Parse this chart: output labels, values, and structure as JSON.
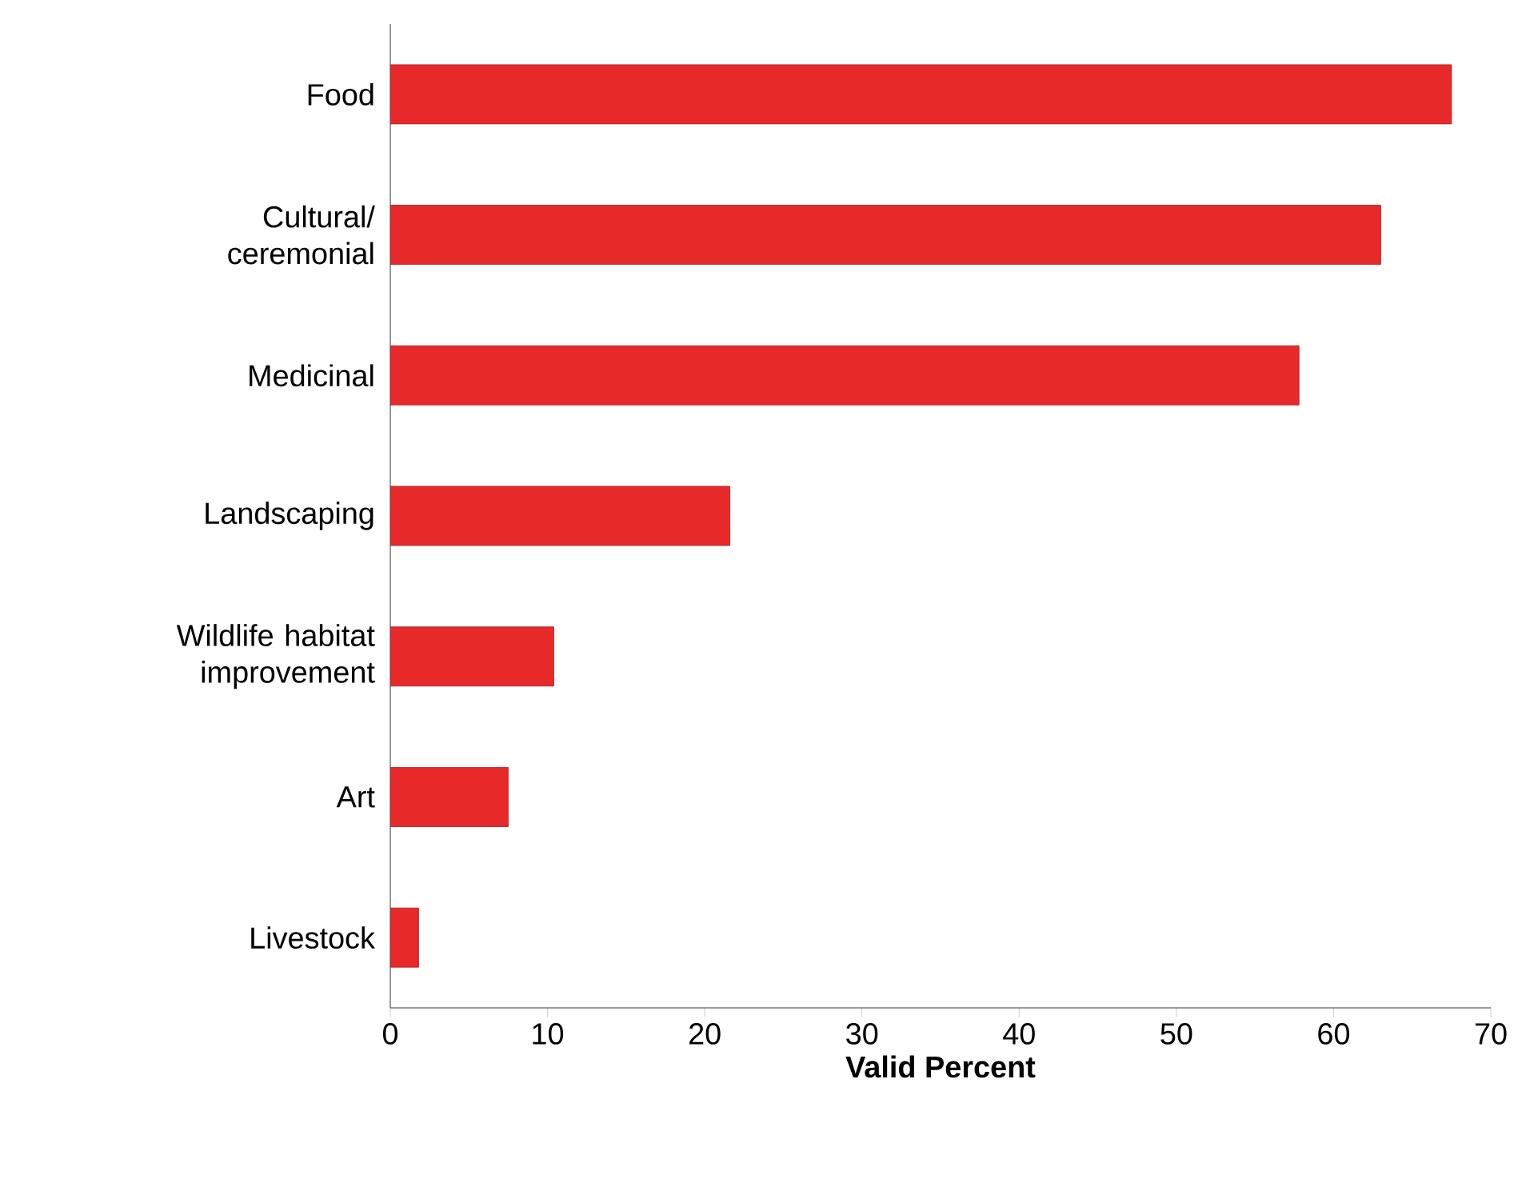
{
  "chart_data": {
    "type": "bar",
    "orientation": "horizontal",
    "xlabel": "**Valid Percent**",
    "categories": [
      "Food",
      "Cultural/ ceremonial",
      "Medicinal",
      "Landscaping",
      "Wildlife habitat improvement",
      "Art",
      "Livestock"
    ],
    "values": [
      67.5,
      63.0,
      57.8,
      21.6,
      10.4,
      7.5,
      1.8
    ],
    "color": "#e8292a",
    "xlim": [
      0,
      70
    ],
    "xticks": [
      0,
      10,
      20,
      30,
      40,
      50,
      60,
      70
    ],
    "grid": false
  }
}
